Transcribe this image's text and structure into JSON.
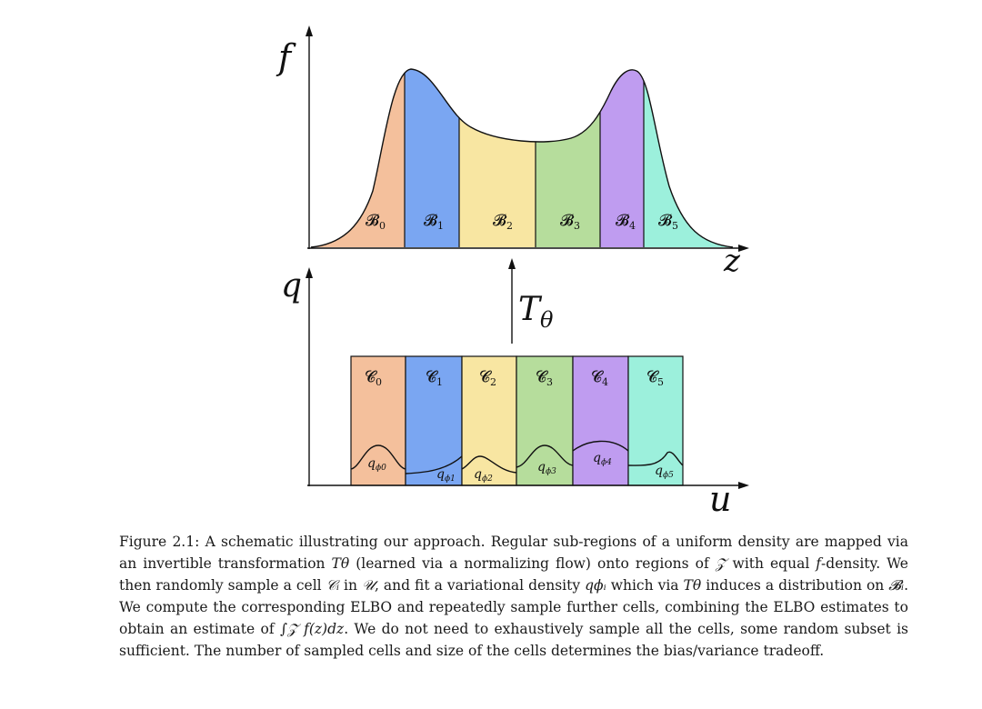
{
  "figure": {
    "top_axis": {
      "y_label": "f",
      "x_label": "z"
    },
    "bottom_axis": {
      "y_label": "q",
      "x_label": "u"
    },
    "transform_label": "Tθ",
    "colors": {
      "region0": "#f4c09c",
      "region1": "#7aa6f2",
      "region2": "#f8e6a2",
      "region3": "#b6dd9c",
      "region4": "#bf9cf0",
      "region5": "#9cf0dc",
      "outline": "#111111"
    },
    "top_regions": [
      {
        "label": "𝓑",
        "sub": "0"
      },
      {
        "label": "𝓑",
        "sub": "1"
      },
      {
        "label": "𝓑",
        "sub": "2"
      },
      {
        "label": "𝓑",
        "sub": "3"
      },
      {
        "label": "𝓑",
        "sub": "4"
      },
      {
        "label": "𝓑",
        "sub": "5"
      }
    ],
    "bottom_cells": [
      {
        "label": "𝓒",
        "sub": "0",
        "q": "q",
        "q_sub": "ϕ0"
      },
      {
        "label": "𝓒",
        "sub": "1",
        "q": "q",
        "q_sub": "ϕ1"
      },
      {
        "label": "𝓒",
        "sub": "2",
        "q": "q",
        "q_sub": "ϕ2"
      },
      {
        "label": "𝓒",
        "sub": "3",
        "q": "q",
        "q_sub": "ϕ3"
      },
      {
        "label": "𝓒",
        "sub": "4",
        "q": "q",
        "q_sub": "ϕ4"
      },
      {
        "label": "𝓒",
        "sub": "5",
        "q": "q",
        "q_sub": "ϕ5"
      }
    ]
  },
  "caption": {
    "label": "Figure 2.1:",
    "text_parts": [
      " A schematic illustrating our approach. Regular sub-regions of a uniform density are mapped via an invertible transformation ",
      "Tθ",
      " (learned via a normalizing flow) onto regions of ",
      "𝒵",
      " with equal ",
      "f",
      "-density. We then randomly sample a cell ",
      "𝒞ᵢ",
      " in ",
      "𝒰",
      ", and fit a variational density ",
      "qϕᵢ",
      " which via ",
      "Tθ",
      " induces a distribution on ",
      "𝓑ᵢ",
      ". We compute the corresponding ELBO and repeatedly sample further cells, combining the ELBO estimates to obtain an estimate of ",
      "∫𝒵 f(z)dz",
      ". We do not need to exhaustively sample all the cells, some random subset is sufficient. The number of sampled cells and size of the cells determines the bias/variance tradeoff."
    ]
  }
}
